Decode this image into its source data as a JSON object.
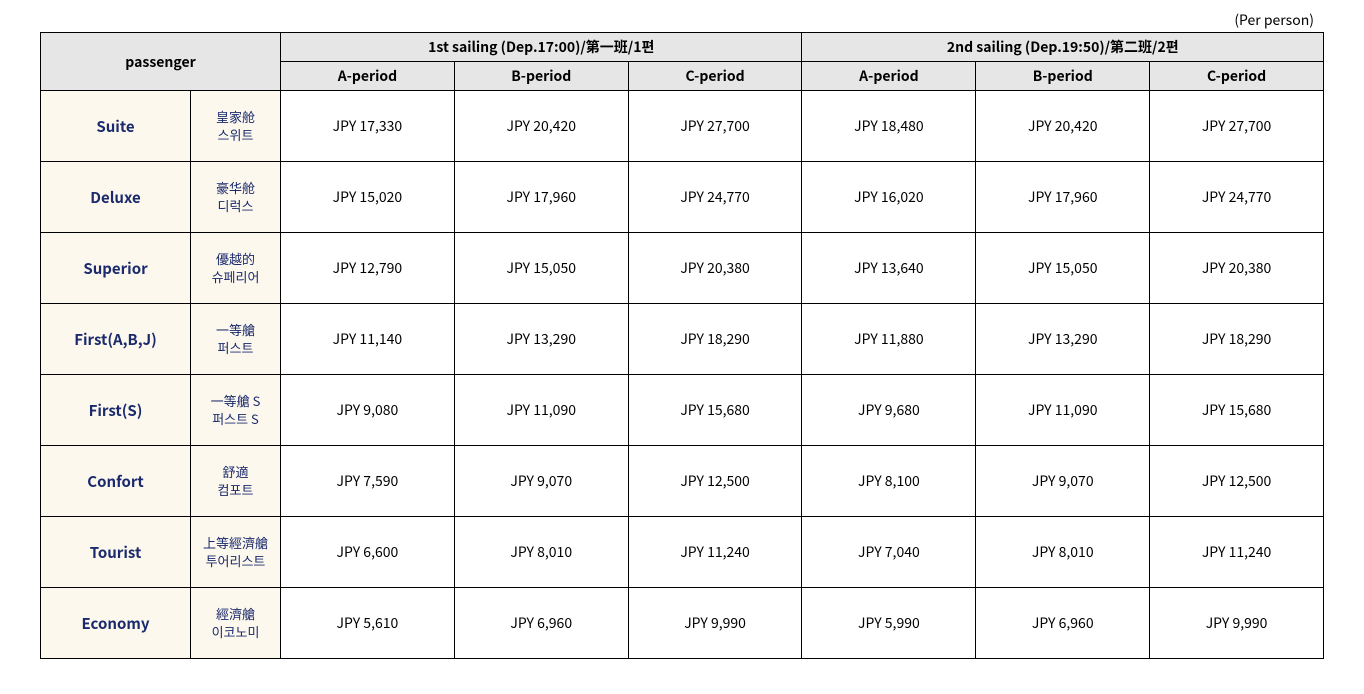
{
  "caption": "(Per person)",
  "header": {
    "passenger": "passenger",
    "sailing1": "1st sailing (Dep.17:00)/第一班/1편",
    "sailing2": "2nd sailing (Dep.19:50)/第二班/2편",
    "periods": [
      "A-period",
      "B-period",
      "C-period"
    ]
  },
  "rows": [
    {
      "name": "Suite",
      "trans_cn": "皇家舱",
      "trans_kr": "스위트",
      "s1": [
        "JPY 17,330",
        "JPY 20,420",
        "JPY 27,700"
      ],
      "s2": [
        "JPY 18,480",
        "JPY 20,420",
        "JPY 27,700"
      ]
    },
    {
      "name": "Deluxe",
      "trans_cn": "豪华舱",
      "trans_kr": "디럭스",
      "s1": [
        "JPY 15,020",
        "JPY 17,960",
        "JPY 24,770"
      ],
      "s2": [
        "JPY 16,020",
        "JPY 17,960",
        "JPY 24,770"
      ]
    },
    {
      "name": "Superior",
      "trans_cn": "優越的",
      "trans_kr": "슈페리어",
      "s1": [
        "JPY 12,790",
        "JPY 15,050",
        "JPY 20,380"
      ],
      "s2": [
        "JPY 13,640",
        "JPY 15,050",
        "JPY 20,380"
      ]
    },
    {
      "name": "First(A,B,J)",
      "trans_cn": "一等艙",
      "trans_kr": "퍼스트",
      "s1": [
        "JPY 11,140",
        "JPY 13,290",
        "JPY 18,290"
      ],
      "s2": [
        "JPY 11,880",
        "JPY 13,290",
        "JPY 18,290"
      ]
    },
    {
      "name": "First(S)",
      "trans_cn": "一等艙 S",
      "trans_kr": "퍼스트 S",
      "s1": [
        "JPY 9,080",
        "JPY 11,090",
        "JPY 15,680"
      ],
      "s2": [
        "JPY 9,680",
        "JPY 11,090",
        "JPY 15,680"
      ]
    },
    {
      "name": "Confort",
      "trans_cn": "舒適",
      "trans_kr": "컴포트",
      "s1": [
        "JPY 7,590",
        "JPY 9,070",
        "JPY 12,500"
      ],
      "s2": [
        "JPY 8,100",
        "JPY 9,070",
        "JPY 12,500"
      ]
    },
    {
      "name": "Tourist",
      "trans_cn": "上等經濟艙",
      "trans_kr": "투어리스트",
      "s1": [
        "JPY 6,600",
        "JPY 8,010",
        "JPY 11,240"
      ],
      "s2": [
        "JPY 7,040",
        "JPY 8,010",
        "JPY 11,240"
      ]
    },
    {
      "name": "Economy",
      "trans_cn": "經濟艙",
      "trans_kr": "이코노미",
      "s1": [
        "JPY 5,610",
        "JPY 6,960",
        "JPY 9,990"
      ],
      "s2": [
        "JPY 5,990",
        "JPY 6,960",
        "JPY 9,990"
      ]
    }
  ]
}
